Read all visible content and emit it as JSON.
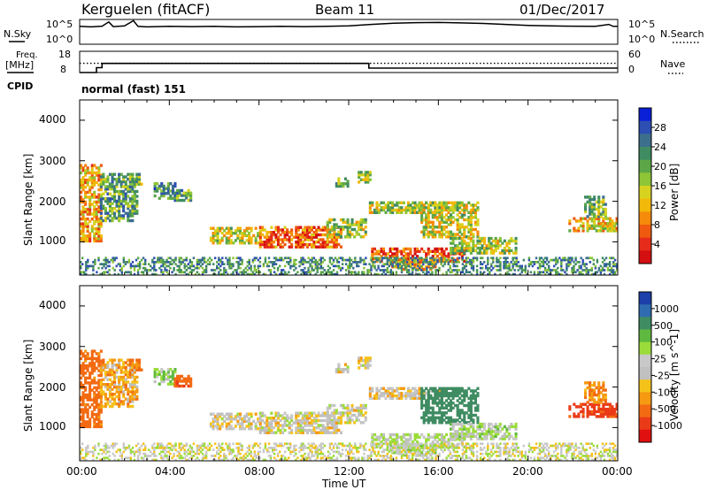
{
  "header": {
    "station": "Kerguelen (fitACF)",
    "beam": "Beam 11",
    "date": "01/Dec/2017"
  },
  "nsky_panel": {
    "left_label": "N.Sky",
    "left_ticks": [
      "10^5",
      "10^0"
    ],
    "right_ticks": [
      "10^5",
      "10^0"
    ],
    "right_label": "N.Search",
    "trace": [
      [
        0,
        0.72
      ],
      [
        0.5,
        0.7
      ],
      [
        1,
        0.73
      ],
      [
        1.3,
        0.9
      ],
      [
        1.5,
        0.71
      ],
      [
        2,
        0.74
      ],
      [
        2.4,
        0.95
      ],
      [
        2.6,
        0.72
      ],
      [
        3,
        0.7
      ],
      [
        4,
        0.72
      ],
      [
        5,
        0.71
      ],
      [
        6,
        0.72
      ],
      [
        7,
        0.7
      ],
      [
        8,
        0.71
      ],
      [
        9,
        0.72
      ],
      [
        10,
        0.71
      ],
      [
        11,
        0.72
      ],
      [
        12,
        0.74
      ],
      [
        13,
        0.8
      ],
      [
        14,
        0.85
      ],
      [
        15,
        0.87
      ],
      [
        16,
        0.88
      ],
      [
        17,
        0.86
      ],
      [
        18,
        0.84
      ],
      [
        19,
        0.8
      ],
      [
        20,
        0.76
      ],
      [
        21,
        0.74
      ],
      [
        22,
        0.73
      ],
      [
        23,
        0.72
      ],
      [
        23.6,
        0.8
      ],
      [
        23.8,
        0.72
      ],
      [
        24,
        0.72
      ]
    ]
  },
  "freq_panel": {
    "left_label_1": "Freq.",
    "left_label_2": "[MHz]",
    "left_ticks": [
      "18",
      "8"
    ],
    "right_ticks": [
      "60",
      "0"
    ],
    "right_label": "Nave",
    "freq_segments": [
      [
        0,
        8.0
      ],
      [
        0.75,
        8.0
      ],
      [
        0.75,
        10.3
      ],
      [
        1.0,
        10.3
      ],
      [
        1.0,
        12.3
      ],
      [
        12.9,
        12.3
      ],
      [
        12.9,
        10.1
      ],
      [
        24,
        10.1
      ]
    ],
    "nave_level": 26,
    "freq_range": [
      8,
      18
    ],
    "nave_range": [
      0,
      60
    ]
  },
  "cpid": {
    "label": "CPID",
    "text": "normal (fast) 151"
  },
  "panels": {
    "power": {
      "ylabel": "Slant Range [km]",
      "yticks": [
        "4000",
        "3000",
        "2000",
        "1000"
      ],
      "cbar_label": "Power [dB]",
      "cbar_ticks": [
        "28",
        "24",
        "20",
        "16",
        "12",
        "8",
        "4"
      ],
      "cbar_colors": [
        "#0a1fd8",
        "#2d4fb3",
        "#3c6f8c",
        "#3f8c62",
        "#5ca647",
        "#8ec536",
        "#d6d21f",
        "#f2b80a",
        "#f58a0b",
        "#ef5a10",
        "#e52c1a",
        "#d40f12"
      ]
    },
    "velocity": {
      "ylabel": "Slant Range [km]",
      "yticks": [
        "4000",
        "3000",
        "2000",
        "1000"
      ],
      "cbar_label": "Velocity [m s^-1]",
      "cbar_ticks": [
        "1000",
        "500",
        "100",
        "25",
        "-25",
        "-100",
        "-500",
        "-1000"
      ],
      "cbar_colors": [
        "#1c3fa8",
        "#2f6bb0",
        "#3f8c62",
        "#5fb83f",
        "#9bdc3a",
        "#c8c8c8",
        "#c0c0c0",
        "#f5c21a",
        "#f59a12",
        "#f26a12",
        "#ea3a18",
        "#e01010"
      ]
    }
  },
  "xaxis": {
    "ticks": [
      "00:00",
      "04:00",
      "08:00",
      "12:00",
      "16:00",
      "20:00",
      "00:00"
    ],
    "label": "Time UT"
  },
  "chart_data": {
    "type": "heatmap",
    "title": "Kerguelen (fitACF) Beam 11 01/Dec/2017",
    "xlabel": "Time UT",
    "ylabel": "Slant Range [km]",
    "x_range_hours_ut": [
      0,
      24
    ],
    "y_range_km": [
      180,
      4500
    ],
    "echo_regions": [
      {
        "t0": 0.0,
        "t1": 0.9,
        "r0": 1000,
        "r1": 2900,
        "power_db": 20,
        "velocity": -150
      },
      {
        "t0": 0.9,
        "t1": 2.6,
        "r0": 1500,
        "r1": 2700,
        "power_db": 10,
        "velocity": -60
      },
      {
        "t0": 2.2,
        "t1": 2.8,
        "r0": 2400,
        "r1": 2700,
        "power_db": 12,
        "velocity": -100
      },
      {
        "t0": 3.3,
        "t1": 4.2,
        "r0": 2050,
        "r1": 2450,
        "power_db": 8,
        "velocity": 80
      },
      {
        "t0": 4.2,
        "t1": 4.9,
        "r0": 2000,
        "r1": 2250,
        "power_db": 10,
        "velocity": -200
      },
      {
        "t0": 5.8,
        "t1": 8.0,
        "r0": 950,
        "r1": 1350,
        "power_db": 16,
        "velocity": 0
      },
      {
        "t0": 8.0,
        "t1": 11.6,
        "r0": 850,
        "r1": 1350,
        "power_db": 24,
        "velocity": 0
      },
      {
        "t0": 11.0,
        "t1": 12.7,
        "r0": 1100,
        "r1": 1550,
        "power_db": 14,
        "velocity": 5
      },
      {
        "t0": 11.4,
        "t1": 11.9,
        "r0": 2350,
        "r1": 2550,
        "power_db": 10,
        "velocity": 0
      },
      {
        "t0": 12.4,
        "t1": 12.9,
        "r0": 2450,
        "r1": 2700,
        "power_db": 14,
        "velocity": -5
      },
      {
        "t0": 12.9,
        "t1": 16.0,
        "r0": 1700,
        "r1": 2000,
        "power_db": 14,
        "velocity": -10
      },
      {
        "t0": 13.0,
        "t1": 17.2,
        "r0": 500,
        "r1": 850,
        "power_db": 26,
        "velocity": 40
      },
      {
        "t0": 13.8,
        "t1": 15.8,
        "r0": 300,
        "r1": 550,
        "power_db": 20,
        "velocity": 60
      },
      {
        "t0": 15.2,
        "t1": 17.8,
        "r0": 1100,
        "r1": 2000,
        "power_db": 16,
        "velocity": 400
      },
      {
        "t0": 16.5,
        "t1": 19.5,
        "r0": 700,
        "r1": 1100,
        "power_db": 14,
        "velocity": 50
      },
      {
        "t0": 21.8,
        "t1": 24.0,
        "r0": 1250,
        "r1": 1600,
        "power_db": 18,
        "velocity": -300
      },
      {
        "t0": 22.5,
        "t1": 23.5,
        "r0": 1600,
        "r1": 2100,
        "power_db": 12,
        "velocity": -100
      }
    ],
    "ground_scatter_band_km": [
      180,
      600
    ]
  }
}
